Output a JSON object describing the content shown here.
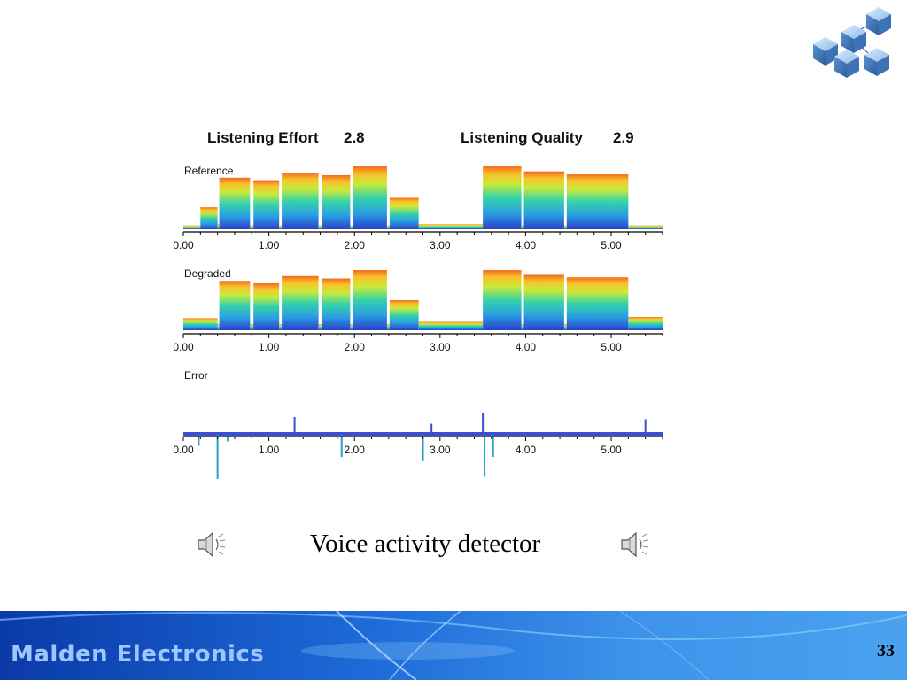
{
  "slide": {
    "caption": "Voice activity detector",
    "company": "Malden Electronics",
    "page_number": "33"
  },
  "icons": {
    "logo": "network-cubes-icon",
    "speaker_left": "speaker-icon",
    "speaker_right": "speaker-icon"
  },
  "chart_data": {
    "type": "area",
    "scores": [
      {
        "label": "Listening Effort",
        "value": "2.8"
      },
      {
        "label": "Listening Quality",
        "value": "2.9"
      }
    ],
    "x_ticks": [
      "0.00",
      "1.00",
      "2.00",
      "3.00",
      "4.00",
      "5.00"
    ],
    "xlim": [
      0,
      5.6
    ],
    "panels": [
      {
        "label": "Reference",
        "segments": [
          {
            "start": 0.0,
            "end": 0.2,
            "level": 0.06
          },
          {
            "start": 0.2,
            "end": 0.4,
            "level": 0.35
          },
          {
            "start": 0.4,
            "end": 0.42,
            "level": 0.08
          },
          {
            "start": 0.42,
            "end": 0.78,
            "level": 0.82
          },
          {
            "start": 0.78,
            "end": 0.82,
            "level": 0.06
          },
          {
            "start": 0.82,
            "end": 1.12,
            "level": 0.78
          },
          {
            "start": 1.12,
            "end": 1.15,
            "level": 0.06
          },
          {
            "start": 1.15,
            "end": 1.58,
            "level": 0.9
          },
          {
            "start": 1.58,
            "end": 1.62,
            "level": 0.06
          },
          {
            "start": 1.62,
            "end": 1.95,
            "level": 0.86
          },
          {
            "start": 1.95,
            "end": 1.98,
            "level": 0.06
          },
          {
            "start": 1.98,
            "end": 2.38,
            "level": 1.0
          },
          {
            "start": 2.38,
            "end": 2.41,
            "level": 0.06
          },
          {
            "start": 2.41,
            "end": 2.75,
            "level": 0.5
          },
          {
            "start": 2.75,
            "end": 3.5,
            "level": 0.08
          },
          {
            "start": 3.5,
            "end": 3.95,
            "level": 1.0
          },
          {
            "start": 3.95,
            "end": 3.98,
            "level": 0.06
          },
          {
            "start": 3.98,
            "end": 4.45,
            "level": 0.92
          },
          {
            "start": 4.45,
            "end": 4.48,
            "level": 0.06
          },
          {
            "start": 4.48,
            "end": 5.2,
            "level": 0.88
          },
          {
            "start": 5.2,
            "end": 5.6,
            "level": 0.06
          }
        ]
      },
      {
        "label": "Degraded",
        "segments": [
          {
            "start": 0.0,
            "end": 0.4,
            "level": 0.2
          },
          {
            "start": 0.4,
            "end": 0.42,
            "level": 0.1
          },
          {
            "start": 0.42,
            "end": 0.78,
            "level": 0.82
          },
          {
            "start": 0.78,
            "end": 0.82,
            "level": 0.1
          },
          {
            "start": 0.82,
            "end": 1.12,
            "level": 0.78
          },
          {
            "start": 1.12,
            "end": 1.15,
            "level": 0.1
          },
          {
            "start": 1.15,
            "end": 1.58,
            "level": 0.9
          },
          {
            "start": 1.58,
            "end": 1.62,
            "level": 0.1
          },
          {
            "start": 1.62,
            "end": 1.95,
            "level": 0.86
          },
          {
            "start": 1.95,
            "end": 1.98,
            "level": 0.1
          },
          {
            "start": 1.98,
            "end": 2.38,
            "level": 1.0
          },
          {
            "start": 2.38,
            "end": 2.41,
            "level": 0.1
          },
          {
            "start": 2.41,
            "end": 2.75,
            "level": 0.5
          },
          {
            "start": 2.75,
            "end": 3.5,
            "level": 0.14
          },
          {
            "start": 3.5,
            "end": 3.95,
            "level": 1.0
          },
          {
            "start": 3.95,
            "end": 3.98,
            "level": 0.1
          },
          {
            "start": 3.98,
            "end": 4.45,
            "level": 0.92
          },
          {
            "start": 4.45,
            "end": 4.48,
            "level": 0.1
          },
          {
            "start": 4.48,
            "end": 5.2,
            "level": 0.88
          },
          {
            "start": 5.2,
            "end": 5.6,
            "level": 0.22
          }
        ]
      },
      {
        "label": "Error",
        "spikes": [
          {
            "x": 0.18,
            "value": -0.5
          },
          {
            "x": 0.4,
            "value": -2.0
          },
          {
            "x": 0.52,
            "value": -0.3
          },
          {
            "x": 1.3,
            "value": 0.8
          },
          {
            "x": 1.85,
            "value": -1.0
          },
          {
            "x": 2.8,
            "value": -1.2
          },
          {
            "x": 2.9,
            "value": 0.5
          },
          {
            "x": 3.5,
            "value": 1.0
          },
          {
            "x": 3.52,
            "value": -1.9
          },
          {
            "x": 3.62,
            "value": -1.0
          },
          {
            "x": 5.4,
            "value": 0.7
          }
        ]
      }
    ]
  }
}
